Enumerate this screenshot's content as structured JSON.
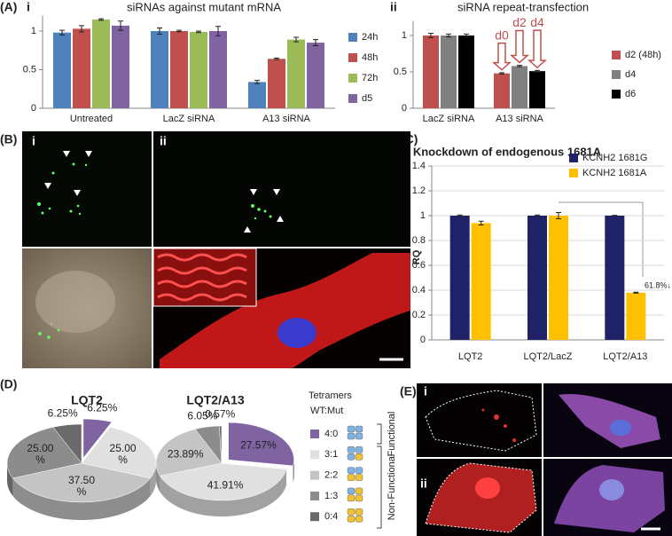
{
  "panels": {
    "a": "(A)",
    "a_i": "i",
    "a_ii": "ii",
    "b": "(B)",
    "b_i": "i",
    "b_ii": "ii",
    "c": "(C)",
    "d": "(D)",
    "e": "(E)",
    "e_i": "i",
    "e_ii": "ii"
  },
  "chart_data": [
    {
      "type": "bar",
      "title": "siRNAs against mutant mRNA",
      "categories": [
        "Untreated",
        "LacZ siRNA",
        "A13 siRNA"
      ],
      "series": [
        {
          "name": "24h",
          "color": "#4f81bd",
          "values": [
            0.98,
            1.0,
            0.34
          ],
          "errors": [
            0.03,
            0.04,
            0.02
          ]
        },
        {
          "name": "48h",
          "color": "#c0504d",
          "values": [
            1.03,
            1.0,
            0.64
          ],
          "errors": [
            0.04,
            0.01,
            0.01
          ]
        },
        {
          "name": "72h",
          "color": "#9bbb59",
          "values": [
            1.15,
            0.99,
            0.89
          ],
          "errors": [
            0.01,
            0.01,
            0.03
          ]
        },
        {
          "name": "d5",
          "color": "#8064a2",
          "values": [
            1.07,
            1.0,
            0.85
          ],
          "errors": [
            0.06,
            0.06,
            0.04
          ]
        }
      ],
      "ylim": [
        0,
        1.2
      ],
      "yticks": [
        0,
        0.5,
        1
      ],
      "grid": false
    },
    {
      "type": "bar",
      "title": "siRNA repeat-transfection",
      "categories": [
        "LacZ siRNA",
        "A13 siRNA"
      ],
      "series": [
        {
          "name": "d2 (48h)",
          "color": "#c0504d",
          "values": [
            1.0,
            0.48
          ],
          "errors": [
            0.03,
            0.01
          ]
        },
        {
          "name": "d4",
          "color": "#808080",
          "values": [
            1.0,
            0.58
          ],
          "errors": [
            0.02,
            0.01
          ]
        },
        {
          "name": "d6",
          "color": "#000000",
          "values": [
            1.0,
            0.51
          ],
          "errors": [
            0.02,
            0.01
          ]
        }
      ],
      "ylim": [
        0,
        1.2
      ],
      "yticks": [
        0,
        0.5,
        1
      ],
      "annotations": [
        "d0",
        "d2",
        "d4"
      ],
      "grid": false
    },
    {
      "type": "bar",
      "title": "Knockdown of endogenous 1681A",
      "ylabel": "RQ",
      "categories": [
        "LQT2",
        "LQT2/LacZ",
        "LQT2/A13"
      ],
      "series": [
        {
          "name": "KCNH2 1681G",
          "color": "#1f2266",
          "values": [
            1.0,
            1.0,
            1.0
          ],
          "errors": [
            0.005,
            0.005,
            0.003
          ]
        },
        {
          "name": "KCNH2 1681A",
          "color": "#ffc000",
          "values": [
            0.94,
            1.0,
            0.38
          ],
          "errors": [
            0.015,
            0.025,
            0.004
          ]
        }
      ],
      "ylim": [
        0,
        1.4
      ],
      "yticks": [
        0,
        0.2,
        0.4,
        0.6,
        0.8,
        1,
        1.2,
        1.4
      ],
      "annotations": [
        "61.8%↓"
      ],
      "grid": true
    },
    {
      "type": "pie",
      "title": "LQT2",
      "values": [
        6.25,
        25,
        37.5,
        25,
        6.25
      ],
      "value_labels": [
        "6.25%",
        "25.00\n%",
        "37.50\n%",
        "25.00\n%",
        "6.25%"
      ]
    },
    {
      "type": "pie",
      "title": "LQT2/A13",
      "values": [
        27.57,
        41.91,
        23.89,
        6.05,
        0.57
      ],
      "value_labels": [
        "27.57%",
        "41.91%",
        "23.89%",
        "6.05%",
        "0.57%"
      ]
    }
  ],
  "tetramer_legend": {
    "title": "Tetramers",
    "subtitle": "WT:Mut",
    "entries": [
      {
        "label": "4:0",
        "color": "#8064a2"
      },
      {
        "label": "3:1",
        "color": "#e0e0e0"
      },
      {
        "label": "2:2",
        "color": "#c4c4c4"
      },
      {
        "label": "1:3",
        "color": "#8c8c8c"
      },
      {
        "label": "0:4",
        "color": "#6a6a6a"
      }
    ],
    "groups": [
      "Functional",
      "Non-Functional"
    ]
  }
}
